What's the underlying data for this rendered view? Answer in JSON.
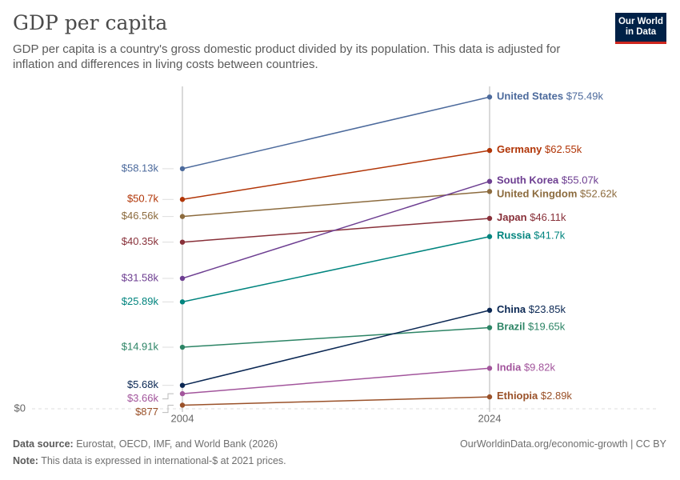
{
  "title": "GDP per capita",
  "subtitle": "GDP per capita is a country's gross domestic product divided by its population. This data is adjusted for inflation and differences in living costs between countries.",
  "logo": {
    "line1": "Our World",
    "line2": "in Data"
  },
  "chart_data": {
    "type": "line",
    "x": [
      "2004",
      "2024"
    ],
    "y_tick_label": "$0",
    "ylim": [
      0,
      80000
    ],
    "grid": "horizontal dashed baseline only",
    "series": [
      {
        "name": "United States",
        "color": "#4c6a9c",
        "values": [
          58130,
          75490
        ],
        "start_label": "$58.13k",
        "end_label": "$75.49k"
      },
      {
        "name": "Germany",
        "color": "#b13507",
        "values": [
          50700,
          62550
        ],
        "start_label": "$50.7k",
        "end_label": "$62.55k"
      },
      {
        "name": "United Kingdom",
        "color": "#8c6b3e",
        "values": [
          46560,
          52620
        ],
        "start_label": "$46.56k",
        "end_label": "$52.62k"
      },
      {
        "name": "Japan",
        "color": "#883039",
        "values": [
          40350,
          46110
        ],
        "start_label": "$40.35k",
        "end_label": "$46.11k"
      },
      {
        "name": "South Korea",
        "color": "#6d3e91",
        "values": [
          31580,
          55070
        ],
        "start_label": "$31.58k",
        "end_label": "$55.07k"
      },
      {
        "name": "Russia",
        "color": "#00847e",
        "values": [
          25890,
          41700
        ],
        "start_label": "$25.89k",
        "end_label": "$41.7k"
      },
      {
        "name": "Brazil",
        "color": "#2c8465",
        "values": [
          14910,
          19650
        ],
        "start_label": "$14.91k",
        "end_label": "$19.65k"
      },
      {
        "name": "China",
        "color": "#0a2753",
        "values": [
          5680,
          23850
        ],
        "start_label": "$5.68k",
        "end_label": "$23.85k"
      },
      {
        "name": "India",
        "color": "#a2559c",
        "values": [
          3660,
          9820
        ],
        "start_label": "$3.66k",
        "end_label": "$9.82k"
      },
      {
        "name": "Ethiopia",
        "color": "#9a5129",
        "values": [
          877,
          2890
        ],
        "start_label": "$877",
        "end_label": "$2.89k"
      }
    ]
  },
  "footer": {
    "source_label": "Data source:",
    "source_text": "Eurostat, OECD, IMF, and World Bank (2026)",
    "url": "OurWorldinData.org/economic-growth | CC BY",
    "note_label": "Note:",
    "note_text": "This data is expressed in international-$ at 2021 prices."
  }
}
